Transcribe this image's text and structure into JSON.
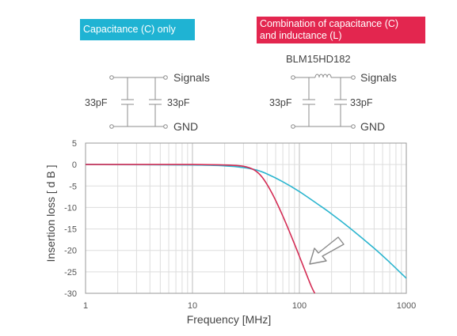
{
  "badges": {
    "capacitance_only": "Capacitance (C) only",
    "combination_line1": "Combination of capacitance (C)",
    "combination_line2": "and inductance (L)"
  },
  "colors": {
    "capacitance_badge": "#1fb3d3",
    "combination_badge": "#e3264f",
    "curve_capacitance": "#2bb5cf",
    "curve_combination": "#d42d55",
    "arrow_fill": "#ffffff",
    "arrow_stroke": "#8a8a8a"
  },
  "circuit_c": {
    "signals_label": "Signals",
    "gnd_label": "GND",
    "cap_left_label": "33pF",
    "cap_right_label": "33pF"
  },
  "circuit_lc": {
    "part_number": "BLM15HD182",
    "signals_label": "Signals",
    "gnd_label": "GND",
    "cap_left_label": "33pF",
    "cap_right_label": "33pF"
  },
  "chart_data": {
    "type": "line",
    "xlabel": "Frequency [MHz]",
    "ylabel": "Insertion loss [ d B ]",
    "x_scale": "log",
    "xlim": [
      1,
      1000
    ],
    "ylim": [
      -30,
      5
    ],
    "x_ticks": [
      1,
      10,
      100,
      1000
    ],
    "x_tick_labels": [
      "1",
      "10",
      "100",
      "1000"
    ],
    "y_ticks": [
      5,
      0,
      -5,
      -10,
      -15,
      -20,
      -25,
      -30
    ],
    "y_tick_labels": [
      "5",
      "0",
      "-5",
      "-10",
      "-15",
      "-20",
      "-25",
      "-30"
    ],
    "grid": true,
    "series": [
      {
        "key": "capacitance_only",
        "x": [
          1,
          10,
          20,
          30,
          40,
          50,
          70,
          100,
          150,
          200,
          300,
          500,
          700,
          1000
        ],
        "y": [
          0,
          -0.1,
          -0.3,
          -0.7,
          -1.3,
          -2.2,
          -4.0,
          -6.3,
          -9.3,
          -11.5,
          -14.9,
          -19.5,
          -22.8,
          -26.5
        ]
      },
      {
        "key": "capacitance_and_inductance",
        "x": [
          1,
          10,
          20,
          30,
          38,
          45,
          55,
          70,
          90,
          110,
          130,
          150
        ],
        "y": [
          0,
          0,
          -0.1,
          -0.4,
          -1.3,
          -3.0,
          -6.5,
          -12.0,
          -18.5,
          -24.0,
          -28.5,
          -31.5
        ]
      }
    ],
    "annotation": "arrow pointing down-left toward the capacitance + inductance curve"
  }
}
